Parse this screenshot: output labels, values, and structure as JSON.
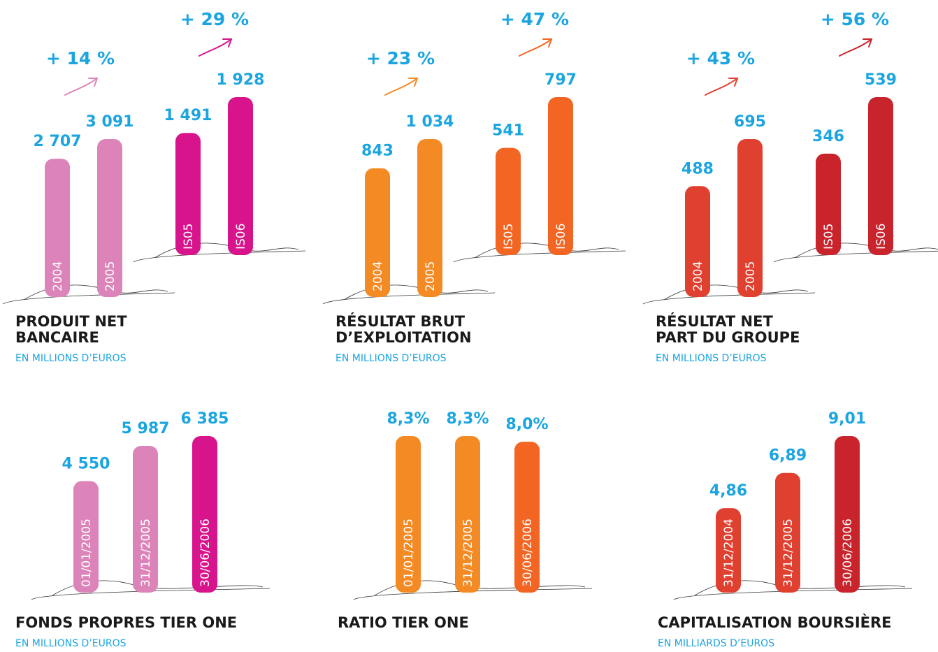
{
  "chart_data": [
    {
      "type": "bar",
      "title": [
        "PRODUIT NET",
        "BANCAIRE"
      ],
      "subtitle": "EN MILLIONS D’EUROS",
      "groups": [
        {
          "categories": [
            "2004",
            "2005"
          ],
          "values": [
            2707,
            3091
          ],
          "value_labels": [
            "2 707",
            "3 091"
          ],
          "colors": [
            "#dc84b9",
            "#dc84b9"
          ],
          "annotation": "+ 14 %"
        },
        {
          "categories": [
            "IS05",
            "IS06"
          ],
          "values": [
            1491,
            1928
          ],
          "value_labels": [
            "1 491",
            "1 928"
          ],
          "colors": [
            "#d7148c",
            "#d7148c"
          ],
          "annotation": "+ 29 %"
        }
      ]
    },
    {
      "type": "bar",
      "title": [
        "RÉSULTAT BRUT",
        "D’EXPLOITATION"
      ],
      "subtitle": "EN MILLIONS D’EUROS",
      "groups": [
        {
          "categories": [
            "2004",
            "2005"
          ],
          "values": [
            843,
            1034
          ],
          "value_labels": [
            "843",
            "1 034"
          ],
          "colors": [
            "#f38a24",
            "#f38a24"
          ],
          "annotation": "+ 23 %"
        },
        {
          "categories": [
            "IS05",
            "IS06"
          ],
          "values": [
            541,
            797
          ],
          "value_labels": [
            "541",
            "797"
          ],
          "colors": [
            "#f26522",
            "#f26522"
          ],
          "annotation": "+ 47 %"
        }
      ]
    },
    {
      "type": "bar",
      "title": [
        "RÉSULTAT NET",
        "PART DU GROUPE"
      ],
      "subtitle": "EN MILLIONS D’EUROS",
      "groups": [
        {
          "categories": [
            "2004",
            "2005"
          ],
          "values": [
            488,
            695
          ],
          "value_labels": [
            "488",
            "695"
          ],
          "colors": [
            "#e0402f",
            "#e0402f"
          ],
          "annotation": "+ 43 %"
        },
        {
          "categories": [
            "IS05",
            "IS06"
          ],
          "values": [
            346,
            539
          ],
          "value_labels": [
            "346",
            "539"
          ],
          "colors": [
            "#c9232c",
            "#c9232c"
          ],
          "annotation": "+ 56 %"
        }
      ]
    },
    {
      "type": "bar",
      "title": [
        "FONDS PROPRES TIER ONE"
      ],
      "subtitle": "EN MILLIONS D’EUROS",
      "groups": [
        {
          "categories": [
            "01/01/2005",
            "31/12/2005",
            "30/06/2006"
          ],
          "values": [
            4550,
            5987,
            6385
          ],
          "value_labels": [
            "4 550",
            "5 987",
            "6 385"
          ],
          "colors": [
            "#dc84b9",
            "#dc84b9",
            "#d7148c"
          ]
        }
      ]
    },
    {
      "type": "bar",
      "title": [
        "RATIO TIER ONE"
      ],
      "groups": [
        {
          "categories": [
            "01/01/2005",
            "31/12/2005",
            "30/06/2006"
          ],
          "values": [
            8.3,
            8.3,
            8.0
          ],
          "value_labels": [
            "8,3%",
            "8,3%",
            "8,0%"
          ],
          "colors": [
            "#f38a24",
            "#f38a24",
            "#f26522"
          ]
        }
      ]
    },
    {
      "type": "bar",
      "title": [
        "CAPITALISATION BOURSIÈRE"
      ],
      "subtitle": "EN MILLIARDS D’EUROS",
      "groups": [
        {
          "categories": [
            "31/12/2004",
            "31/12/2005",
            "30/06/2006"
          ],
          "values": [
            4.86,
            6.89,
            9.01
          ],
          "value_labels": [
            "4,86",
            "6,89",
            "9,01"
          ],
          "colors": [
            "#e0402f",
            "#e0402f",
            "#c9232c"
          ]
        }
      ]
    }
  ]
}
